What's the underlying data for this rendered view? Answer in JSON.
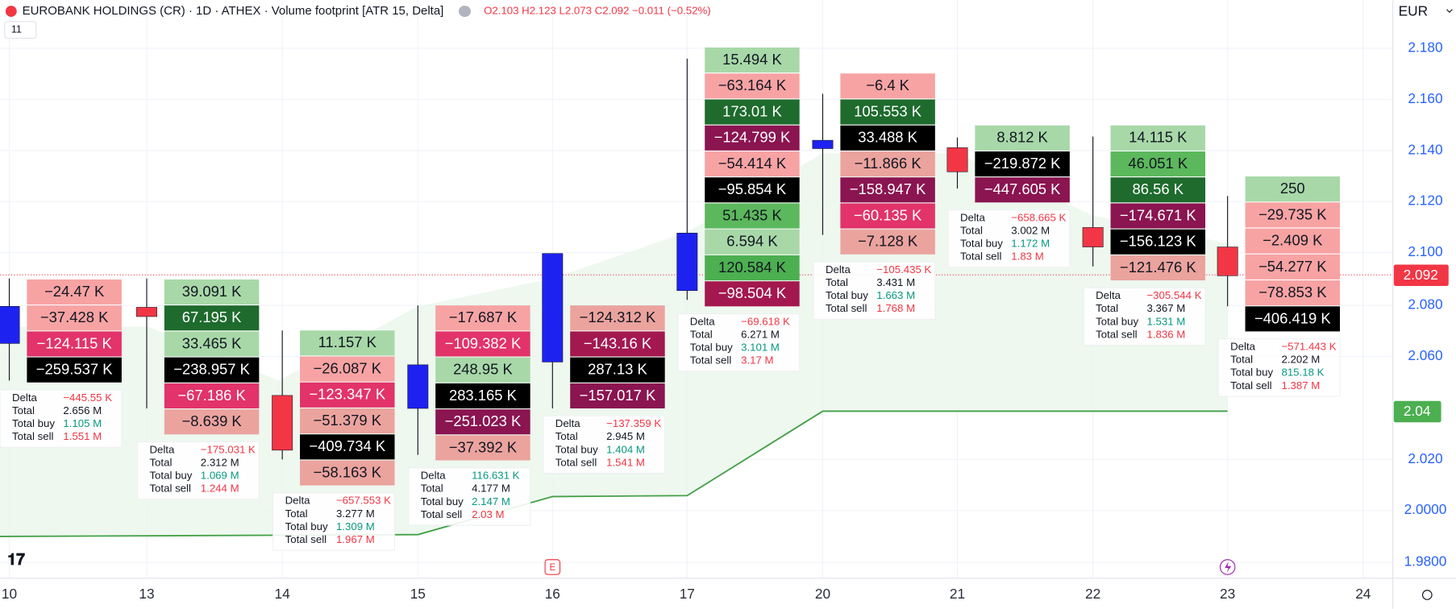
{
  "header": {
    "title": "EUROBANK HOLDINGS (CR) · 1D · ATHEX · Volume footprint [ATR 15, Delta]",
    "ohlc": "O2.103 H2.123 L2.073 C2.092 −0.011 (−0.52%)",
    "badge": "11",
    "currency": "EUR"
  },
  "price_axis": {
    "labels": [
      "2.180",
      "2.160",
      "2.140",
      "2.120",
      "2.100",
      "2.080",
      "2.060",
      "2.020",
      "2.0000",
      "1.9800"
    ],
    "last_price": "2.092",
    "line_price": "2.04"
  },
  "time_axis": [
    "10",
    "13",
    "14",
    "15",
    "16",
    "17",
    "20",
    "21",
    "22",
    "23",
    "24"
  ],
  "stat_labels": [
    "Delta",
    "Total",
    "Total buy",
    "Total sell"
  ],
  "markers": [
    "E"
  ],
  "days": [
    {
      "cells": [
        [
          "−24.47 K",
          "#f7a3a3"
        ],
        [
          "−37.428 K",
          "#f7a3a3"
        ],
        [
          "−124.115 K",
          "#e2336b"
        ],
        [
          "−259.537 K",
          "#000000"
        ]
      ],
      "stats": [
        "−445.55 K",
        "2.656 M",
        "1.105 M",
        "1.551 M"
      ]
    },
    {
      "cells": [
        [
          "39.091 K",
          "#a8d8a8"
        ],
        [
          "67.195 K",
          "#1e6b2d"
        ],
        [
          "33.465 K",
          "#a8d8a8"
        ],
        [
          "−238.957 K",
          "#000000"
        ],
        [
          "−67.186 K",
          "#e2336b"
        ],
        [
          "−8.639 K",
          "#eba39e"
        ]
      ],
      "stats": [
        "−175.031 K",
        "2.312 M",
        "1.069 M",
        "1.244 M"
      ]
    },
    {
      "cells": [
        [
          "11.157 K",
          "#a8d8a8"
        ],
        [
          "−26.087 K",
          "#f7a3a3"
        ],
        [
          "−123.347 K",
          "#e2336b"
        ],
        [
          "−51.379 K",
          "#eba39e"
        ],
        [
          "−409.734 K",
          "#000000"
        ],
        [
          "−58.163 K",
          "#eba39e"
        ]
      ],
      "stats": [
        "−657.553 K",
        "3.277 M",
        "1.309 M",
        "1.967 M"
      ]
    },
    {
      "cells": [
        [
          "−17.687 K",
          "#f7a3a3"
        ],
        [
          "−109.382 K",
          "#e2336b"
        ],
        [
          "248.95 K",
          "#a8d8a8"
        ],
        [
          "283.165 K",
          "#000000"
        ],
        [
          "−251.023 K",
          "#8a1550"
        ],
        [
          "−37.392 K",
          "#eba39e"
        ]
      ],
      "stats": [
        "116.631 K",
        "4.177 M",
        "2.147 M",
        "2.03 M"
      ]
    },
    {
      "cells": [
        [
          "−124.312 K",
          "#eba39e"
        ],
        [
          "−143.16 K",
          "#a3184f"
        ],
        [
          "287.13 K",
          "#000000"
        ],
        [
          "−157.017 K",
          "#8a1550"
        ]
      ],
      "stats": [
        "−137.359 K",
        "2.945 M",
        "1.404 M",
        "1.541 M"
      ]
    },
    {
      "cells": [
        [
          "15.494 K",
          "#a8d8a8"
        ],
        [
          "−63.164 K",
          "#f7a3a3"
        ],
        [
          "173.01 K",
          "#1e6b2d"
        ],
        [
          "−124.799 K",
          "#8a1550"
        ],
        [
          "−54.414 K",
          "#f7a3a3"
        ],
        [
          "−95.854 K",
          "#000000"
        ],
        [
          "51.435 K",
          "#5cb85c"
        ],
        [
          "6.594 K",
          "#a8d8a8"
        ],
        [
          "120.584 K",
          "#4caf50"
        ],
        [
          "−98.504 K",
          "#a3184f"
        ]
      ],
      "stats": [
        "−69.618 K",
        "6.271 M",
        "3.101 M",
        "3.17 M"
      ]
    },
    {
      "cells": [
        [
          "−6.4 K",
          "#f7a3a3"
        ],
        [
          "105.553 K",
          "#1e6b2d"
        ],
        [
          "33.488 K",
          "#000000"
        ],
        [
          "−11.866 K",
          "#eba39e"
        ],
        [
          "−158.947 K",
          "#8a1550"
        ],
        [
          "−60.135 K",
          "#e2336b"
        ],
        [
          "−7.128 K",
          "#eba39e"
        ]
      ],
      "stats": [
        "−105.435 K",
        "3.431 M",
        "1.663 M",
        "1.768 M"
      ]
    },
    {
      "cells": [
        [
          "8.812 K",
          "#a8d8a8"
        ],
        [
          "−219.872 K",
          "#000000"
        ],
        [
          "−447.605 K",
          "#8a1550"
        ]
      ],
      "stats": [
        "−658.665 K",
        "3.002 M",
        "1.172 M",
        "1.83 M"
      ]
    },
    {
      "cells": [
        [
          "14.115 K",
          "#a8d8a8"
        ],
        [
          "46.051 K",
          "#5cb85c"
        ],
        [
          "86.56 K",
          "#1e6b2d"
        ],
        [
          "−174.671 K",
          "#8a1550"
        ],
        [
          "−156.123 K",
          "#000000"
        ],
        [
          "−121.476 K",
          "#eba39e"
        ]
      ],
      "stats": [
        "−305.544 K",
        "3.367 M",
        "1.531 M",
        "1.836 M"
      ]
    },
    {
      "cells": [
        [
          "250",
          "#a8d8a8"
        ],
        [
          "−29.735 K",
          "#f7a3a3"
        ],
        [
          "−2.409 K",
          "#f7a3a3"
        ],
        [
          "−54.277 K",
          "#f7a3a3"
        ],
        [
          "−78.853 K",
          "#f7a3a3"
        ],
        [
          "−406.419 K",
          "#000000"
        ]
      ],
      "stats": [
        "−571.443 K",
        "2.202 M",
        "815.18 K",
        "1.387 M"
      ]
    }
  ]
}
